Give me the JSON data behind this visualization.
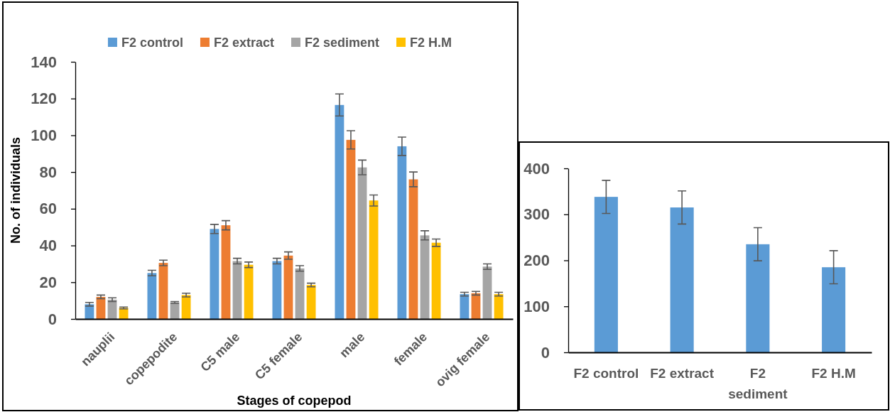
{
  "chart_data": [
    {
      "type": "bar",
      "xlabel": "Stages of copepod",
      "ylabel": "No. of individuals",
      "legend": "top",
      "categories": [
        "nauplii",
        "copepodite",
        "C5 male",
        "C5 female",
        "male",
        "female",
        "ovig female"
      ],
      "series": [
        {
          "name": "F2 control",
          "color": "#5b9bd5",
          "values": [
            8,
            25,
            49,
            31.5,
            116.5,
            94,
            13.5
          ],
          "errors": [
            1,
            1.5,
            2.5,
            1.5,
            6,
            5,
            1
          ]
        },
        {
          "name": "F2 extract",
          "color": "#ed7d31",
          "values": [
            12,
            30.5,
            51,
            34.5,
            97.5,
            76,
            14
          ],
          "errors": [
            1,
            1.5,
            2.5,
            2,
            5,
            4,
            1
          ]
        },
        {
          "name": "F2 sediment",
          "color": "#a5a5a5",
          "values": [
            10.5,
            9,
            31.5,
            27.5,
            82.5,
            45.5,
            28.5
          ],
          "errors": [
            1,
            0.5,
            1.5,
            1.5,
            4,
            2.5,
            1.5
          ]
        },
        {
          "name": "F2 H.M",
          "color": "#ffc000",
          "values": [
            6,
            13,
            29.5,
            18.5,
            64.5,
            41.5,
            13.5
          ],
          "errors": [
            0.5,
            1,
            1.5,
            1,
            3,
            2,
            1
          ]
        }
      ],
      "ylim": [
        0,
        140
      ],
      "yticks": [
        0,
        20,
        40,
        60,
        80,
        100,
        120,
        140
      ]
    },
    {
      "type": "bar",
      "categories": [
        "F2 control",
        "F2 extract",
        "F2 sediment",
        "F2 H.M"
      ],
      "values": [
        338,
        315,
        235,
        185
      ],
      "errors": [
        36,
        36,
        36,
        36
      ],
      "color": "#5b9bd5",
      "ylim": [
        0,
        400
      ],
      "yticks": [
        0,
        100,
        200,
        300,
        400
      ]
    }
  ]
}
